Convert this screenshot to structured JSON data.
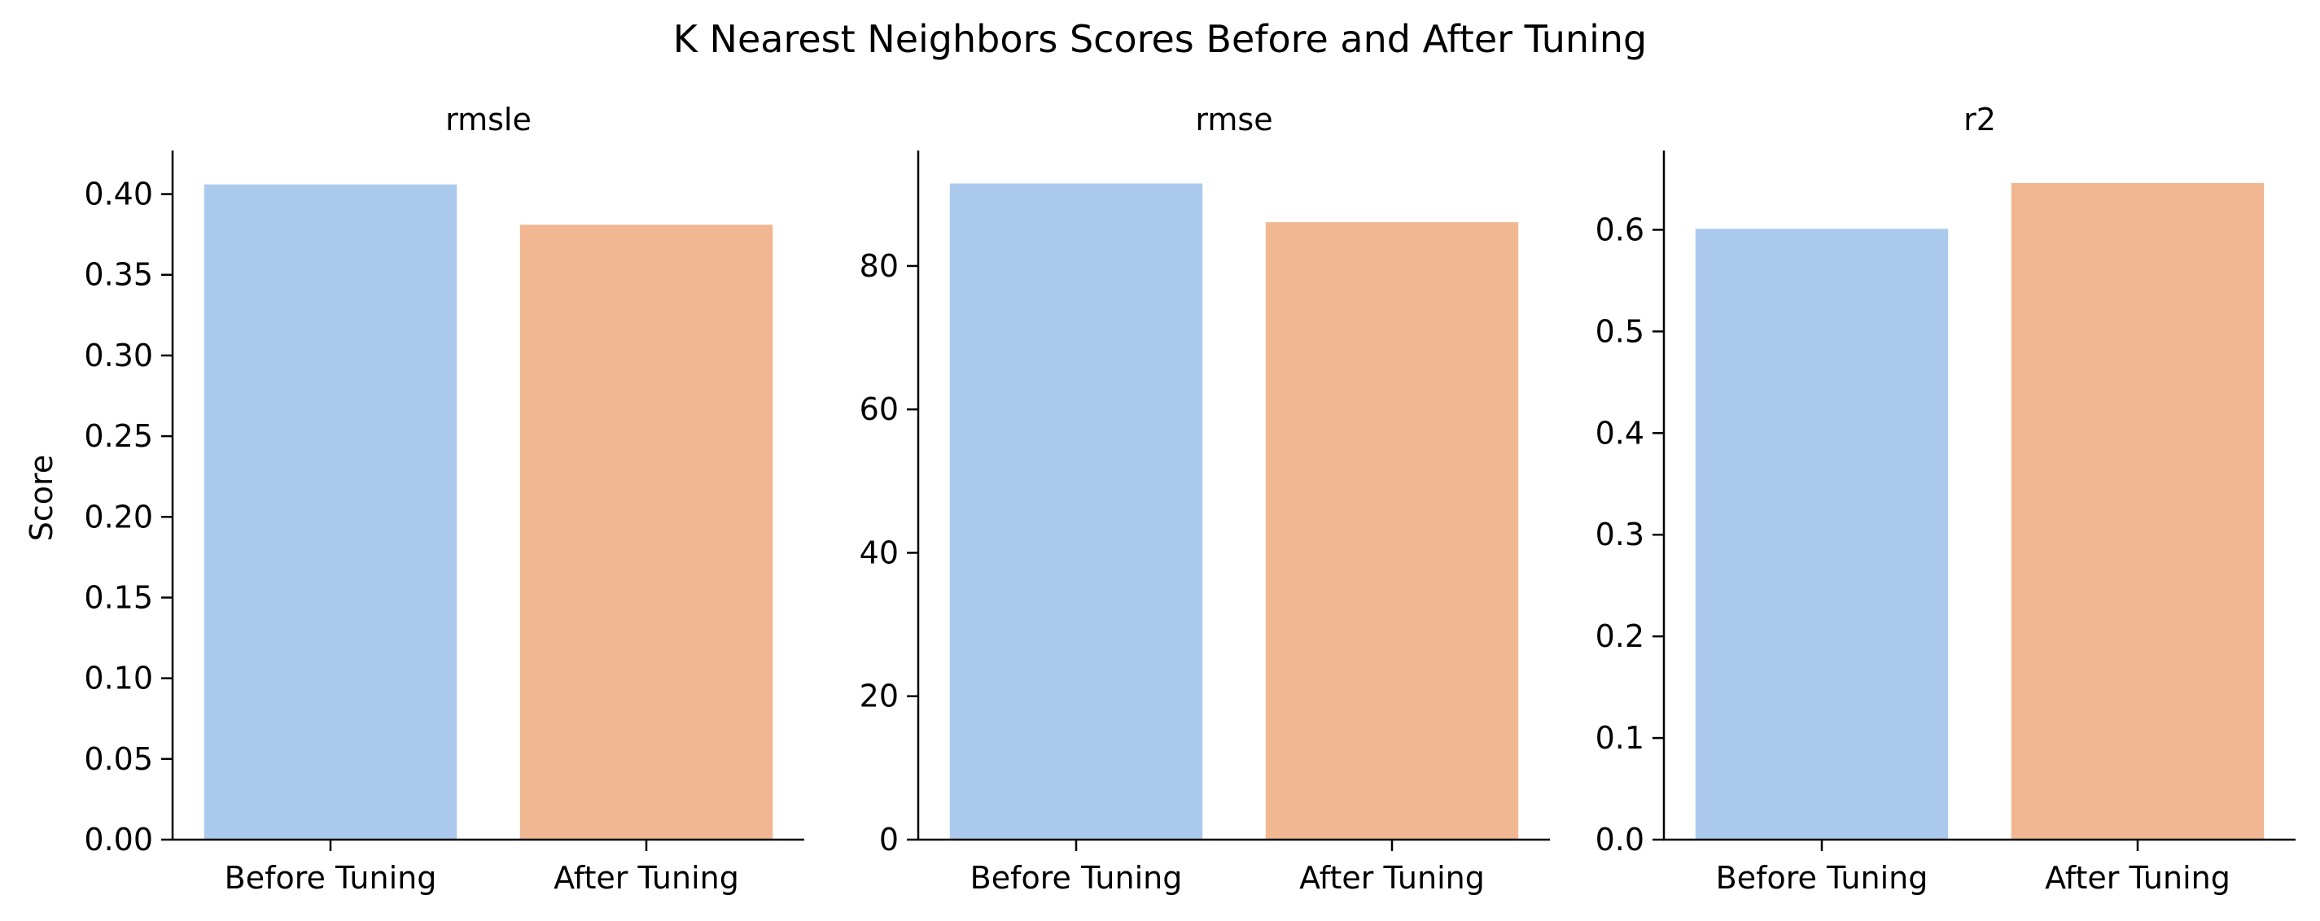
{
  "chart_data": {
    "type": "bar",
    "title": "K Nearest Neighbors Scores Before and After Tuning",
    "ylabel": "Score",
    "categories": [
      "Before Tuning",
      "After Tuning"
    ],
    "colors": [
      "#abc9ec",
      "#f0b792"
    ],
    "panels": [
      {
        "subtitle": "rmsle",
        "values": [
          0.406,
          0.381
        ],
        "ylim": [
          0,
          0.427
        ],
        "yticks": [
          0.0,
          0.05,
          0.1,
          0.15,
          0.2,
          0.25,
          0.3,
          0.35,
          0.4
        ],
        "ytick_labels": [
          "0.00",
          "0.05",
          "0.10",
          "0.15",
          "0.20",
          "0.25",
          "0.30",
          "0.35",
          "0.40"
        ]
      },
      {
        "subtitle": "rmse",
        "values": [
          91.5,
          86.1
        ],
        "ylim": [
          0,
          96.1
        ],
        "yticks": [
          0,
          20,
          40,
          60,
          80
        ],
        "ytick_labels": [
          "0",
          "20",
          "40",
          "60",
          "80"
        ]
      },
      {
        "subtitle": "r2",
        "values": [
          0.601,
          0.646
        ],
        "ylim": [
          0,
          0.678
        ],
        "yticks": [
          0.0,
          0.1,
          0.2,
          0.3,
          0.4,
          0.5,
          0.6
        ],
        "ytick_labels": [
          "0.0",
          "0.1",
          "0.2",
          "0.3",
          "0.4",
          "0.5",
          "0.6"
        ]
      }
    ],
    "grid": false,
    "legend": "none"
  }
}
